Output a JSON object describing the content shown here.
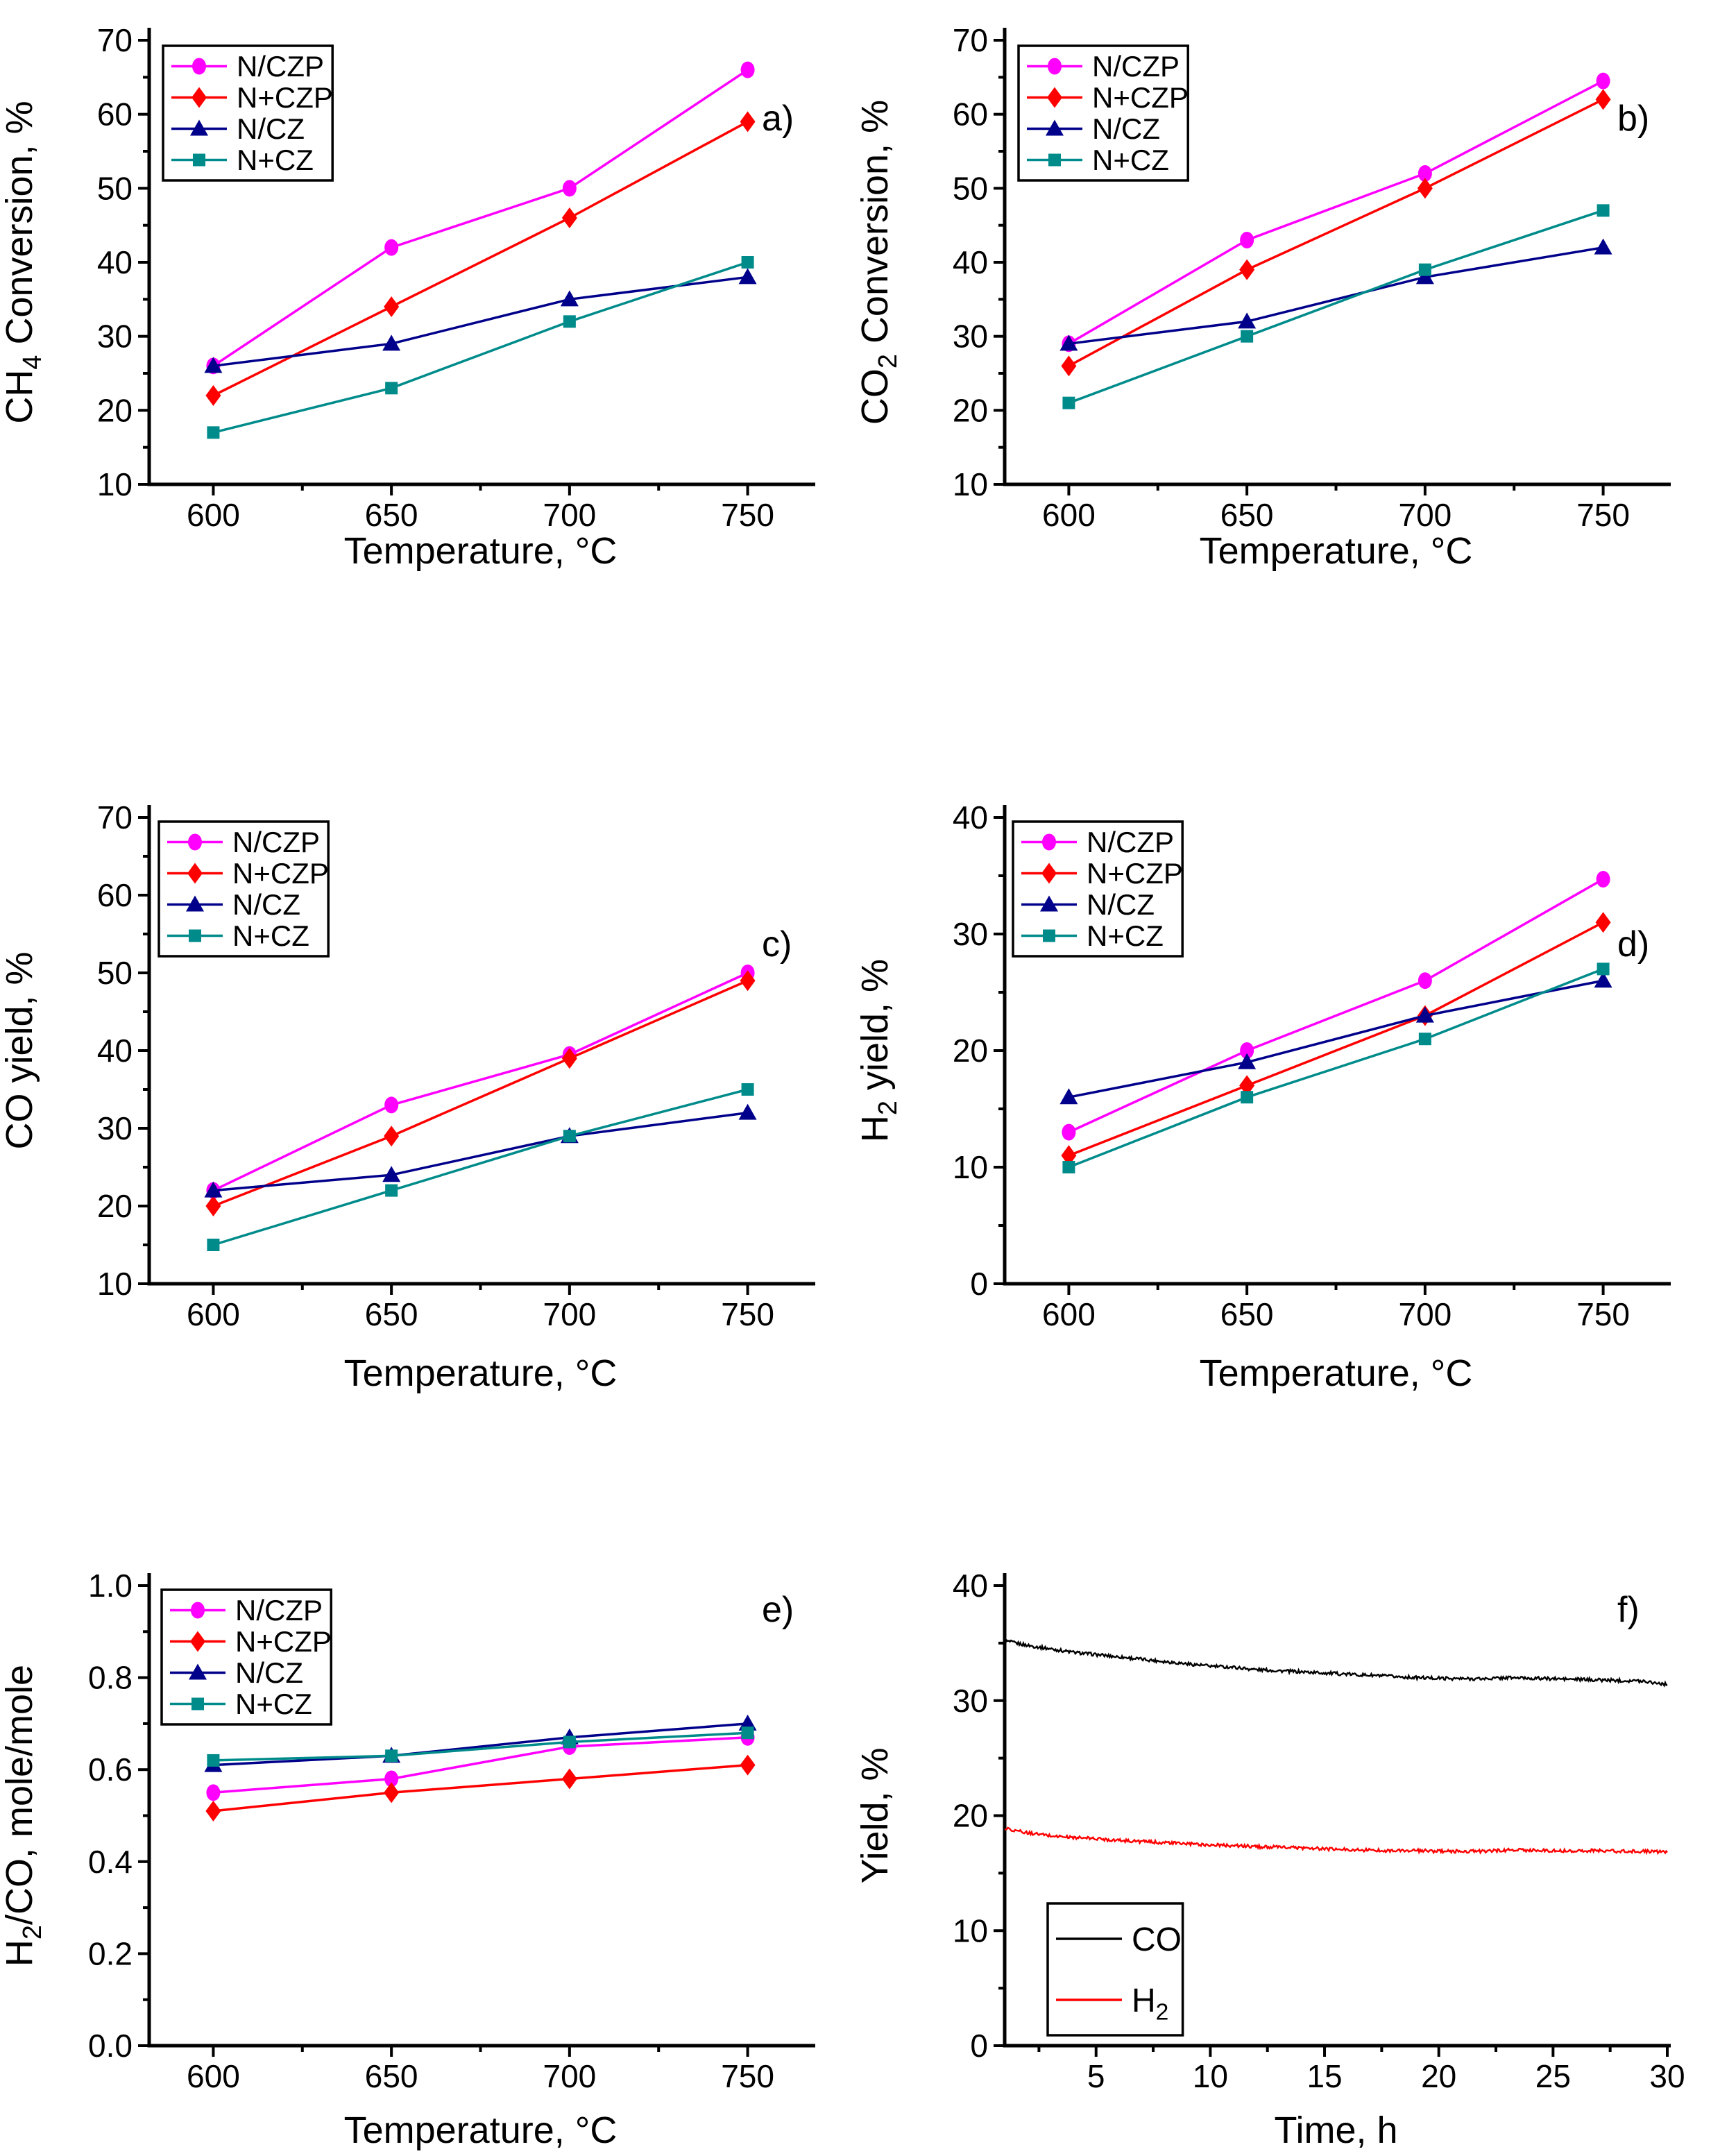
{
  "figure": {
    "type": "multi-panel-scientific-figure",
    "background": "#FFFFFF",
    "panel_letters": [
      "a)",
      "b)",
      "c)",
      "d)",
      "e)",
      "f)"
    ]
  },
  "colors": {
    "magenta": "#FF00FF",
    "red": "#FF0000",
    "navy": "#00008B",
    "teal": "#008B8B",
    "black": "#000000",
    "axis": "#000000"
  },
  "chart_data": [
    {
      "id": "a",
      "type": "line",
      "panel_label": "a)",
      "xlabel": "Temperature, °C",
      "ylabel": "CH₄ Conversion, %",
      "xlim": [
        582,
        768
      ],
      "ylim": [
        10,
        70
      ],
      "xticks": [
        600,
        650,
        700,
        750
      ],
      "xtick_labels": [
        "600",
        "650",
        "700",
        "750"
      ],
      "x_minor": [
        625,
        675,
        725
      ],
      "yticks": [
        10,
        20,
        30,
        40,
        50,
        60,
        70
      ],
      "ytick_labels": [
        "10",
        "20",
        "30",
        "40",
        "50",
        "60",
        "70"
      ],
      "y_minor": [
        15,
        25,
        35,
        45,
        55,
        65
      ],
      "grid": false,
      "legend_position": "top-left",
      "x": [
        600,
        650,
        700,
        750
      ],
      "series": [
        {
          "name": "N/CZP",
          "color": "#FF00FF",
          "marker": "circle",
          "values": [
            26,
            42,
            50,
            66
          ]
        },
        {
          "name": "N+CZP",
          "color": "#FF0000",
          "marker": "diamond",
          "values": [
            22,
            34,
            46,
            59
          ]
        },
        {
          "name": "N/CZ",
          "color": "#00008B",
          "marker": "triangle",
          "values": [
            26,
            29,
            35,
            38
          ]
        },
        {
          "name": "N+CZ",
          "color": "#008B8B",
          "marker": "square",
          "values": [
            17,
            23,
            32,
            40
          ]
        }
      ]
    },
    {
      "id": "b",
      "type": "line",
      "panel_label": "b)",
      "xlabel": "Temperature, °C",
      "ylabel": "CO₂ Conversion, %",
      "xlim": [
        582,
        768
      ],
      "ylim": [
        10,
        70
      ],
      "xticks": [
        600,
        650,
        700,
        750
      ],
      "xtick_labels": [
        "600",
        "650",
        "700",
        "750"
      ],
      "x_minor": [
        625,
        675,
        725
      ],
      "yticks": [
        10,
        20,
        30,
        40,
        50,
        60,
        70
      ],
      "ytick_labels": [
        "10",
        "20",
        "30",
        "40",
        "50",
        "60",
        "70"
      ],
      "y_minor": [
        15,
        25,
        35,
        45,
        55,
        65
      ],
      "grid": false,
      "legend_position": "top-left",
      "x": [
        600,
        650,
        700,
        750
      ],
      "series": [
        {
          "name": "N/CZP",
          "color": "#FF00FF",
          "marker": "circle",
          "values": [
            29,
            43,
            52,
            64.5
          ]
        },
        {
          "name": "N+CZP",
          "color": "#FF0000",
          "marker": "diamond",
          "values": [
            26,
            39,
            50,
            62
          ]
        },
        {
          "name": "N/CZ",
          "color": "#00008B",
          "marker": "triangle",
          "values": [
            29,
            32,
            38,
            42
          ]
        },
        {
          "name": "N+CZ",
          "color": "#008B8B",
          "marker": "square",
          "values": [
            21,
            30,
            39,
            47
          ]
        }
      ]
    },
    {
      "id": "c",
      "type": "line",
      "panel_label": "c)",
      "xlabel": "Temperature, °C",
      "ylabel": "CO yield, %",
      "xlim": [
        582,
        768
      ],
      "ylim": [
        10,
        70
      ],
      "xticks": [
        600,
        650,
        700,
        750
      ],
      "xtick_labels": [
        "600",
        "650",
        "700",
        "750"
      ],
      "x_minor": [
        625,
        675,
        725
      ],
      "yticks": [
        10,
        20,
        30,
        40,
        50,
        60,
        70
      ],
      "ytick_labels": [
        "10",
        "20",
        "30",
        "40",
        "50",
        "60",
        "70"
      ],
      "y_minor": [
        15,
        25,
        35,
        45,
        55,
        65
      ],
      "grid": false,
      "legend_position": "top-left",
      "x": [
        600,
        650,
        700,
        750
      ],
      "series": [
        {
          "name": "N/CZP",
          "color": "#FF00FF",
          "marker": "circle",
          "values": [
            22,
            33,
            39.5,
            50
          ]
        },
        {
          "name": "N+CZP",
          "color": "#FF0000",
          "marker": "diamond",
          "values": [
            20,
            29,
            39,
            49
          ]
        },
        {
          "name": "N/CZ",
          "color": "#00008B",
          "marker": "triangle",
          "values": [
            22,
            24,
            29,
            32
          ]
        },
        {
          "name": "N+CZ",
          "color": "#008B8B",
          "marker": "square",
          "values": [
            15,
            22,
            29,
            35
          ]
        }
      ]
    },
    {
      "id": "d",
      "type": "line",
      "panel_label": "d)",
      "xlabel": "Temperature, °C",
      "ylabel": "H₂ yield, %",
      "xlim": [
        582,
        768
      ],
      "ylim": [
        0,
        40
      ],
      "xticks": [
        600,
        650,
        700,
        750
      ],
      "xtick_labels": [
        "600",
        "650",
        "700",
        "750"
      ],
      "x_minor": [
        625,
        675,
        725
      ],
      "yticks": [
        0,
        10,
        20,
        30,
        40
      ],
      "ytick_labels": [
        "0",
        "10",
        "20",
        "30",
        "40"
      ],
      "y_minor": [
        5,
        15,
        25,
        35
      ],
      "grid": false,
      "legend_position": "top-left",
      "x": [
        600,
        650,
        700,
        750
      ],
      "series": [
        {
          "name": "N/CZP",
          "color": "#FF00FF",
          "marker": "circle",
          "values": [
            13,
            20,
            26,
            34.7
          ]
        },
        {
          "name": "N+CZP",
          "color": "#FF0000",
          "marker": "diamond",
          "values": [
            11,
            17,
            23,
            31
          ]
        },
        {
          "name": "N/CZ",
          "color": "#00008B",
          "marker": "triangle",
          "values": [
            16,
            19,
            23,
            26
          ]
        },
        {
          "name": "N+CZ",
          "color": "#008B8B",
          "marker": "square",
          "values": [
            10,
            16,
            21,
            27
          ]
        }
      ]
    },
    {
      "id": "e",
      "type": "line",
      "panel_label": "e)",
      "xlabel": "Temperature, °C",
      "ylabel": "H₂/CO, mole/mole",
      "xlim": [
        582,
        768
      ],
      "ylim": [
        0.0,
        1.0
      ],
      "xticks": [
        600,
        650,
        700,
        750
      ],
      "xtick_labels": [
        "600",
        "650",
        "700",
        "750"
      ],
      "x_minor": [
        625,
        675,
        725
      ],
      "yticks": [
        0.0,
        0.2,
        0.4,
        0.6,
        0.8,
        1.0
      ],
      "ytick_labels": [
        "0.0",
        "0.2",
        "0.4",
        "0.6",
        "0.8",
        "1.0"
      ],
      "y_minor": [
        0.1,
        0.3,
        0.5,
        0.7,
        0.9
      ],
      "grid": false,
      "legend_position": "top-left",
      "x": [
        600,
        650,
        700,
        750
      ],
      "series": [
        {
          "name": "N/CZP",
          "color": "#FF00FF",
          "marker": "circle",
          "values": [
            0.55,
            0.58,
            0.65,
            0.67
          ]
        },
        {
          "name": "N+CZP",
          "color": "#FF0000",
          "marker": "diamond",
          "values": [
            0.51,
            0.55,
            0.58,
            0.61
          ]
        },
        {
          "name": "N/CZ",
          "color": "#00008B",
          "marker": "triangle",
          "values": [
            0.61,
            0.63,
            0.67,
            0.7
          ]
        },
        {
          "name": "N+CZ",
          "color": "#008B8B",
          "marker": "square",
          "values": [
            0.62,
            0.63,
            0.66,
            0.68
          ]
        }
      ]
    },
    {
      "id": "f",
      "type": "line",
      "panel_label": "f)",
      "xlabel": "Time, h",
      "ylabel": "Yield, %",
      "xlim": [
        1,
        30
      ],
      "ylim": [
        0,
        40
      ],
      "xticks": [
        5,
        10,
        15,
        20,
        25,
        30
      ],
      "xtick_labels": [
        "5",
        "10",
        "15",
        "20",
        "25",
        "30"
      ],
      "x_minor": [
        2.5,
        7.5,
        12.5,
        17.5,
        22.5,
        27.5
      ],
      "yticks": [
        0,
        10,
        20,
        30,
        40
      ],
      "ytick_labels": [
        "0",
        "10",
        "20",
        "30",
        "40"
      ],
      "y_minor": [
        5,
        15,
        25,
        35
      ],
      "grid": false,
      "legend_position": "bottom-left",
      "series": [
        {
          "name": "CO",
          "color": "#000000",
          "marker": "none",
          "noisy": true,
          "x": [
            1,
            2,
            3,
            4,
            5,
            6,
            7,
            8,
            9,
            10,
            11,
            12,
            13,
            14,
            15,
            16,
            17,
            18,
            19,
            20,
            21,
            22,
            23,
            24,
            25,
            26,
            27,
            28,
            29,
            30
          ],
          "values": [
            35.2,
            34.8,
            34.5,
            34.2,
            34.0,
            33.8,
            33.6,
            33.4,
            33.2,
            33.0,
            32.9,
            32.7,
            32.6,
            32.5,
            32.4,
            32.3,
            32.2,
            32.1,
            32.0,
            31.95,
            31.9,
            31.9,
            32.0,
            31.95,
            31.9,
            31.85,
            31.8,
            31.75,
            31.7,
            31.4
          ]
        },
        {
          "name": "H₂",
          "color": "#FF0000",
          "marker": "none",
          "noisy": true,
          "x": [
            1,
            2,
            3,
            4,
            5,
            6,
            7,
            8,
            9,
            10,
            11,
            12,
            13,
            14,
            15,
            16,
            17,
            18,
            19,
            20,
            21,
            22,
            23,
            24,
            25,
            26,
            27,
            28,
            29,
            30
          ],
          "values": [
            18.9,
            18.5,
            18.25,
            18.1,
            18.0,
            17.85,
            17.75,
            17.65,
            17.55,
            17.45,
            17.4,
            17.3,
            17.25,
            17.2,
            17.1,
            17.05,
            17.0,
            16.95,
            16.95,
            16.9,
            16.9,
            16.9,
            17.0,
            17.0,
            16.95,
            16.95,
            16.95,
            16.9,
            16.9,
            16.8
          ]
        }
      ]
    }
  ]
}
